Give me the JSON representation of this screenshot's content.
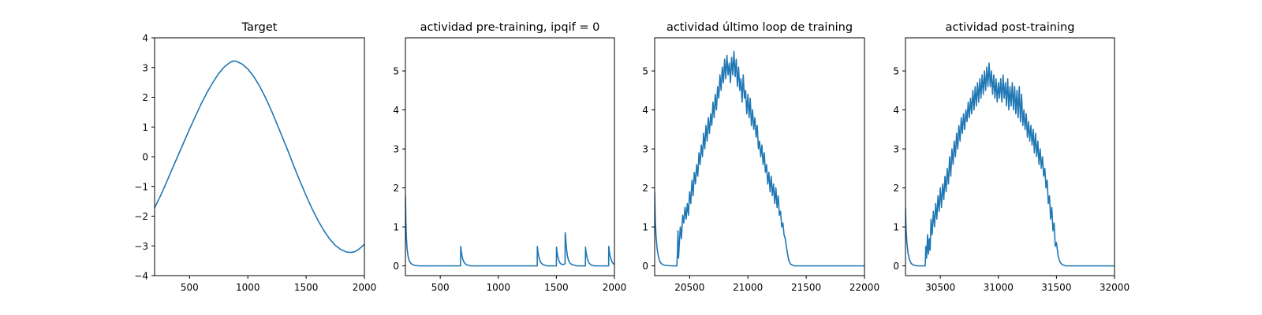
{
  "figure": {
    "background": "#ffffff",
    "line_color": "#1f77b4"
  },
  "chart_data": [
    {
      "type": "line",
      "title": "Target",
      "xlabel": "",
      "ylabel": "",
      "xlim": [
        200,
        2000
      ],
      "ylim": [
        -4,
        4
      ],
      "xticks": [
        500,
        1000,
        1500,
        2000
      ],
      "yticks": [
        -4,
        -3,
        -2,
        -1,
        0,
        1,
        2,
        3,
        4
      ],
      "xtick_labels": [
        "500",
        "1000",
        "1500",
        "2000"
      ],
      "ytick_labels": [
        "−4",
        "−3",
        "−2",
        "−1",
        "0",
        "1",
        "2",
        "3",
        "4"
      ],
      "grid": false,
      "series": [
        {
          "color": "#1f77b4",
          "x": [
            200,
            250,
            300,
            350,
            400,
            450,
            500,
            550,
            600,
            650,
            700,
            750,
            800,
            850,
            880,
            900,
            950,
            1000,
            1050,
            1100,
            1150,
            1200,
            1250,
            1300,
            1350,
            1400,
            1450,
            1500,
            1550,
            1600,
            1650,
            1700,
            1750,
            1800,
            1850,
            1890,
            1920,
            1950,
            2000
          ],
          "y": [
            -1.72,
            -1.32,
            -0.88,
            -0.42,
            0.03,
            0.48,
            0.93,
            1.36,
            1.78,
            2.16,
            2.5,
            2.8,
            3.03,
            3.18,
            3.22,
            3.21,
            3.12,
            2.95,
            2.7,
            2.38,
            2.0,
            1.57,
            1.1,
            0.62,
            0.14,
            -0.37,
            -0.85,
            -1.31,
            -1.74,
            -2.13,
            -2.47,
            -2.76,
            -2.98,
            -3.13,
            -3.21,
            -3.22,
            -3.19,
            -3.12,
            -2.95
          ]
        }
      ]
    },
    {
      "type": "line",
      "title": "actividad pre-training, ipqif = 0",
      "xlabel": "",
      "ylabel": "",
      "xlim": [
        200,
        2000
      ],
      "ylim": [
        -0.25,
        5.85
      ],
      "xticks": [
        500,
        1000,
        1500,
        2000
      ],
      "yticks": [
        0,
        1,
        2,
        3,
        4,
        5
      ],
      "xtick_labels": [
        "500",
        "1000",
        "1500",
        "2000"
      ],
      "ytick_labels": [
        "0",
        "1",
        "2",
        "3",
        "4",
        "5"
      ],
      "grid": false,
      "series": [
        {
          "color": "#1f77b4",
          "x": [
            200,
            204,
            208,
            214,
            222,
            232,
            245,
            262,
            285,
            320,
            400,
            500,
            600,
            675,
            676,
            680,
            686,
            694,
            705,
            725,
            760,
            900,
            1100,
            1300,
            1335,
            1336,
            1340,
            1346,
            1354,
            1365,
            1385,
            1420,
            1480,
            1500,
            1501,
            1505,
            1511,
            1520,
            1532,
            1550,
            1575,
            1576,
            1580,
            1584,
            1589,
            1595,
            1605,
            1620,
            1645,
            1680,
            1720,
            1750,
            1751,
            1755,
            1761,
            1770,
            1782,
            1800,
            1830,
            1870,
            1920,
            1950,
            1951,
            1955,
            1961,
            1970,
            1982,
            2000
          ],
          "y": [
            1.8,
            1.15,
            0.75,
            0.45,
            0.26,
            0.14,
            0.07,
            0.03,
            0.01,
            0.0,
            0.0,
            0.0,
            0.0,
            0.0,
            0.5,
            0.4,
            0.28,
            0.17,
            0.09,
            0.03,
            0.0,
            0.0,
            0.0,
            0.0,
            0.0,
            0.5,
            0.4,
            0.28,
            0.17,
            0.09,
            0.03,
            0.0,
            0.0,
            0.0,
            0.48,
            0.38,
            0.26,
            0.15,
            0.07,
            0.03,
            0.05,
            0.85,
            0.72,
            0.55,
            0.4,
            0.26,
            0.14,
            0.06,
            0.02,
            0.0,
            0.0,
            0.0,
            0.48,
            0.38,
            0.26,
            0.15,
            0.07,
            0.02,
            0.0,
            0.0,
            0.0,
            0.0,
            0.5,
            0.4,
            0.28,
            0.17,
            0.09,
            0.03
          ]
        }
      ]
    },
    {
      "type": "line",
      "title": "actividad último loop de training",
      "xlabel": "",
      "ylabel": "",
      "xlim": [
        20200,
        22000
      ],
      "ylim": [
        -0.25,
        5.85
      ],
      "xticks": [
        20500,
        21000,
        21500,
        22000
      ],
      "yticks": [
        0,
        1,
        2,
        3,
        4,
        5
      ],
      "xtick_labels": [
        "20500",
        "21000",
        "21500",
        "22000"
      ],
      "ytick_labels": [
        "0",
        "1",
        "2",
        "3",
        "4",
        "5"
      ],
      "grid": false,
      "series": [
        {
          "color": "#1f77b4",
          "x": [
            20200,
            20205,
            20212,
            20222,
            20235,
            20250,
            20270,
            20300,
            20350,
            20390,
            20395,
            20400,
            20405,
            20412,
            20420,
            20430,
            20440,
            20450,
            20460,
            20470,
            20480,
            20490,
            20500,
            20510,
            20520,
            20530,
            20540,
            20550,
            20560,
            20570,
            20580,
            20590,
            20600,
            20610,
            20620,
            20630,
            20640,
            20650,
            20660,
            20670,
            20680,
            20690,
            20700,
            20710,
            20720,
            20730,
            20740,
            20750,
            20760,
            20770,
            20780,
            20790,
            20800,
            20810,
            20820,
            20830,
            20840,
            20850,
            20860,
            20870,
            20880,
            20890,
            20900,
            20910,
            20920,
            20930,
            20940,
            20950,
            20960,
            20970,
            20980,
            20990,
            21000,
            21010,
            21020,
            21030,
            21040,
            21050,
            21060,
            21070,
            21080,
            21090,
            21100,
            21110,
            21120,
            21130,
            21140,
            21150,
            21160,
            21170,
            21180,
            21190,
            21200,
            21210,
            21220,
            21230,
            21240,
            21250,
            21260,
            21270,
            21280,
            21290,
            21300,
            21310,
            21320,
            21330,
            21340,
            21350,
            21365,
            21380,
            21400,
            21430,
            21470,
            21520,
            21600,
            21800,
            22000
          ],
          "y": [
            1.9,
            1.2,
            0.75,
            0.42,
            0.2,
            0.08,
            0.03,
            0.01,
            0.0,
            0.0,
            0.3,
            0.9,
            0.2,
            0.6,
            1.0,
            0.7,
            1.3,
            1.1,
            1.5,
            1.2,
            1.6,
            1.3,
            1.9,
            1.6,
            2.2,
            1.8,
            2.4,
            2.1,
            2.6,
            2.3,
            2.9,
            2.6,
            3.1,
            2.8,
            3.4,
            3.0,
            3.6,
            3.2,
            3.8,
            3.4,
            3.9,
            3.6,
            4.2,
            3.8,
            4.4,
            4.0,
            4.6,
            4.3,
            4.9,
            4.5,
            5.1,
            4.7,
            5.3,
            4.8,
            5.4,
            4.9,
            5.2,
            4.7,
            5.35,
            4.9,
            5.5,
            4.85,
            5.3,
            4.6,
            5.1,
            4.5,
            4.8,
            4.2,
            4.9,
            4.3,
            4.5,
            3.9,
            4.4,
            3.8,
            4.3,
            3.6,
            4.0,
            3.5,
            3.8,
            3.3,
            3.6,
            3.0,
            3.2,
            2.8,
            3.1,
            2.6,
            2.9,
            2.4,
            2.6,
            2.1,
            2.4,
            1.9,
            2.3,
            1.8,
            2.1,
            1.6,
            2.0,
            1.5,
            1.8,
            1.3,
            1.4,
            1.0,
            1.1,
            0.8,
            0.7,
            0.5,
            0.3,
            0.15,
            0.05,
            0.02,
            0.0,
            0.0,
            0.0,
            0.0,
            0.0,
            0.0,
            0.0
          ]
        }
      ]
    },
    {
      "type": "line",
      "title": "actividad post-training",
      "xlabel": "",
      "ylabel": "",
      "xlim": [
        30200,
        32000
      ],
      "ylim": [
        -0.25,
        5.85
      ],
      "xticks": [
        30500,
        31000,
        31500,
        32000
      ],
      "yticks": [
        0,
        1,
        2,
        3,
        4,
        5
      ],
      "xtick_labels": [
        "30500",
        "31000",
        "31500",
        "32000"
      ],
      "ytick_labels": [
        "0",
        "1",
        "2",
        "3",
        "4",
        "5"
      ],
      "grid": false,
      "series": [
        {
          "color": "#1f77b4",
          "x": [
            30200,
            30205,
            30212,
            30222,
            30235,
            30250,
            30270,
            30300,
            30350,
            30370,
            30375,
            30382,
            30390,
            30398,
            30405,
            30412,
            30420,
            30430,
            30440,
            30450,
            30460,
            30470,
            30480,
            30490,
            30500,
            30510,
            30520,
            30530,
            30540,
            30550,
            30560,
            30570,
            30580,
            30590,
            30600,
            30610,
            30620,
            30630,
            30640,
            30650,
            30660,
            30670,
            30680,
            30690,
            30700,
            30710,
            30720,
            30730,
            30740,
            30750,
            30760,
            30770,
            30780,
            30790,
            30800,
            30810,
            30820,
            30830,
            30840,
            30850,
            30860,
            30870,
            30880,
            30890,
            30900,
            30910,
            30920,
            30930,
            30940,
            30950,
            30960,
            30970,
            30980,
            30990,
            31000,
            31010,
            31020,
            31030,
            31040,
            31050,
            31060,
            31070,
            31080,
            31090,
            31100,
            31110,
            31120,
            31130,
            31140,
            31150,
            31160,
            31170,
            31180,
            31190,
            31200,
            31210,
            31220,
            31230,
            31240,
            31250,
            31260,
            31270,
            31280,
            31290,
            31300,
            31310,
            31320,
            31330,
            31340,
            31350,
            31360,
            31370,
            31380,
            31390,
            31400,
            31410,
            31420,
            31430,
            31440,
            31450,
            31460,
            31470,
            31480,
            31490,
            31500,
            31515,
            31530,
            31550,
            31580,
            31620,
            31700,
            31850,
            32000
          ],
          "y": [
            1.5,
            0.95,
            0.6,
            0.33,
            0.15,
            0.06,
            0.02,
            0.0,
            0.0,
            0.0,
            0.5,
            0.2,
            0.8,
            0.3,
            0.7,
            0.4,
            1.2,
            0.8,
            1.4,
            1.0,
            1.6,
            1.2,
            1.8,
            1.4,
            2.0,
            1.5,
            2.1,
            1.7,
            2.3,
            1.9,
            2.5,
            2.1,
            2.8,
            2.3,
            3.0,
            2.6,
            3.2,
            2.8,
            3.4,
            3.0,
            3.6,
            3.2,
            3.8,
            3.4,
            3.9,
            3.5,
            4.0,
            3.7,
            4.2,
            3.8,
            4.3,
            3.9,
            4.5,
            4.0,
            4.6,
            4.1,
            4.7,
            4.2,
            4.8,
            4.3,
            4.9,
            4.4,
            5.0,
            4.5,
            5.1,
            4.6,
            5.2,
            4.6,
            5.0,
            4.4,
            4.9,
            4.3,
            4.8,
            4.2,
            4.7,
            4.3,
            4.8,
            4.2,
            4.9,
            4.3,
            4.7,
            4.1,
            4.8,
            4.0,
            4.6,
            4.1,
            4.7,
            4.0,
            4.6,
            3.9,
            4.5,
            3.8,
            4.6,
            3.7,
            4.4,
            3.6,
            4.0,
            3.5,
            3.9,
            3.3,
            3.7,
            3.2,
            3.6,
            3.1,
            3.5,
            2.9,
            3.4,
            2.8,
            3.2,
            2.6,
            3.0,
            2.5,
            2.8,
            2.3,
            2.5,
            2.0,
            2.2,
            1.6,
            1.8,
            1.2,
            1.5,
            0.9,
            1.1,
            0.5,
            0.6,
            0.25,
            0.1,
            0.03,
            0.0,
            0.0,
            0.0,
            0.0,
            0.0
          ]
        }
      ]
    }
  ]
}
